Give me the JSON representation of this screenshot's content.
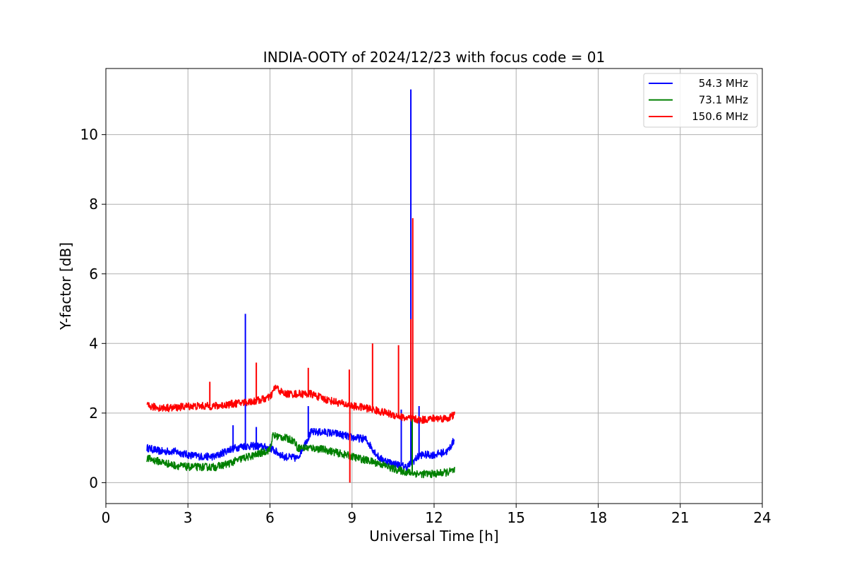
{
  "chart_data": {
    "type": "line",
    "title": "INDIA-OOTY of 2024/12/23 with focus code = 01",
    "xlabel": "Universal Time [h]",
    "ylabel": "Y-factor [dB]",
    "xlim": [
      0,
      24
    ],
    "ylim": [
      -0.6,
      11.9
    ],
    "xticks": [
      0,
      3,
      6,
      9,
      12,
      15,
      18,
      21,
      24
    ],
    "yticks": [
      0,
      2,
      4,
      6,
      8,
      10
    ],
    "grid": true,
    "legend_position": "top-right",
    "series": [
      {
        "name": "54.3 MHz",
        "color": "#0000ff",
        "x": [
          1.5,
          2.0,
          2.5,
          3.0,
          3.5,
          4.0,
          4.5,
          5.0,
          5.5,
          6.0,
          6.5,
          7.0,
          7.5,
          8.0,
          8.5,
          9.0,
          9.5,
          10.0,
          10.5,
          11.0,
          11.5,
          12.0,
          12.5,
          12.75
        ],
        "y": [
          1.0,
          0.9,
          0.9,
          0.8,
          0.75,
          0.75,
          0.95,
          1.05,
          1.05,
          1.0,
          0.75,
          0.7,
          1.45,
          1.45,
          1.4,
          1.3,
          1.25,
          0.7,
          0.55,
          0.45,
          0.8,
          0.8,
          0.9,
          1.25
        ],
        "spikes": [
          {
            "x": 4.65,
            "y": 1.65
          },
          {
            "x": 5.1,
            "y": 4.85
          },
          {
            "x": 5.5,
            "y": 1.6
          },
          {
            "x": 7.4,
            "y": 2.2
          },
          {
            "x": 10.8,
            "y": 2.1
          },
          {
            "x": 11.15,
            "y": 11.3
          },
          {
            "x": 11.45,
            "y": 2.2
          }
        ]
      },
      {
        "name": "73.1 MHz",
        "color": "#008000",
        "x": [
          1.5,
          2.0,
          2.5,
          3.0,
          3.5,
          4.0,
          4.5,
          5.0,
          5.5,
          6.0,
          6.1,
          6.5,
          6.9,
          7.0,
          7.5,
          8.0,
          8.5,
          9.0,
          9.5,
          10.0,
          10.5,
          11.0,
          11.5,
          12.0,
          12.5,
          12.75
        ],
        "y": [
          0.7,
          0.6,
          0.5,
          0.45,
          0.45,
          0.45,
          0.55,
          0.7,
          0.8,
          0.95,
          1.35,
          1.3,
          1.2,
          1.0,
          1.0,
          0.95,
          0.85,
          0.75,
          0.65,
          0.55,
          0.4,
          0.3,
          0.25,
          0.25,
          0.3,
          0.35
        ],
        "spikes": [
          {
            "x": 11.2,
            "y": 1.9
          }
        ]
      },
      {
        "name": "150.6 MHz",
        "color": "#ff0000",
        "x": [
          1.5,
          2.0,
          2.5,
          3.0,
          3.5,
          4.0,
          4.5,
          5.0,
          5.5,
          6.0,
          6.2,
          6.5,
          7.0,
          7.5,
          8.0,
          8.5,
          9.0,
          9.5,
          10.0,
          10.5,
          11.0,
          11.5,
          12.0,
          12.5,
          12.75
        ],
        "y": [
          2.2,
          2.15,
          2.15,
          2.2,
          2.2,
          2.2,
          2.25,
          2.3,
          2.35,
          2.45,
          2.75,
          2.55,
          2.55,
          2.55,
          2.4,
          2.3,
          2.2,
          2.15,
          2.05,
          1.95,
          1.85,
          1.8,
          1.85,
          1.85,
          1.95
        ],
        "spikes": [
          {
            "x": 3.8,
            "y": 2.9
          },
          {
            "x": 5.5,
            "y": 3.45
          },
          {
            "x": 7.4,
            "y": 3.3
          },
          {
            "x": 8.9,
            "y": 3.25
          },
          {
            "x": 8.92,
            "y": 0.0
          },
          {
            "x": 9.75,
            "y": 4.0
          },
          {
            "x": 10.7,
            "y": 3.95
          },
          {
            "x": 11.15,
            "y": 4.7
          },
          {
            "x": 11.22,
            "y": 7.6
          }
        ]
      }
    ]
  }
}
